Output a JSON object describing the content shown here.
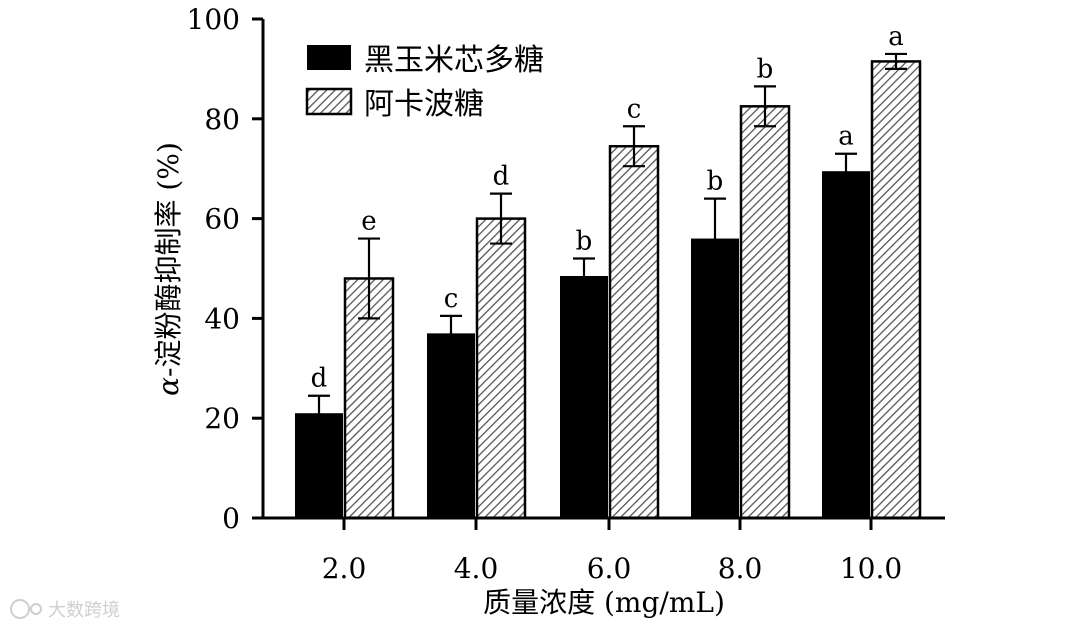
{
  "chart_data": {
    "type": "bar",
    "xlabel": "质量浓度 (mg/mL)",
    "ylabel_prefix": "α",
    "ylabel": "-淀粉酶抑制率 (%)",
    "categories": [
      "2.0",
      "4.0",
      "6.0",
      "8.0",
      "10.0"
    ],
    "ylim": [
      0,
      100
    ],
    "yticks": [
      0,
      20,
      40,
      60,
      80,
      100
    ],
    "legend_position": "top-left",
    "series": [
      {
        "name": "黑玉米芯多糖",
        "fill": "solid",
        "color": "#000000",
        "values": [
          21,
          37,
          48.5,
          56,
          69.5
        ],
        "errors": [
          3.5,
          3.5,
          3.5,
          8,
          3.5
        ],
        "labels": [
          "d",
          "c",
          "b",
          "b",
          "a"
        ]
      },
      {
        "name": "阿卡波糖",
        "fill": "hatched",
        "color": "#555555",
        "values": [
          48,
          60,
          74.5,
          82.5,
          91.5
        ],
        "errors": [
          8,
          5,
          4,
          4,
          1.5
        ],
        "labels": [
          "e",
          "d",
          "c",
          "b",
          "a"
        ]
      }
    ]
  },
  "watermark": {
    "text": "大数跨境"
  }
}
